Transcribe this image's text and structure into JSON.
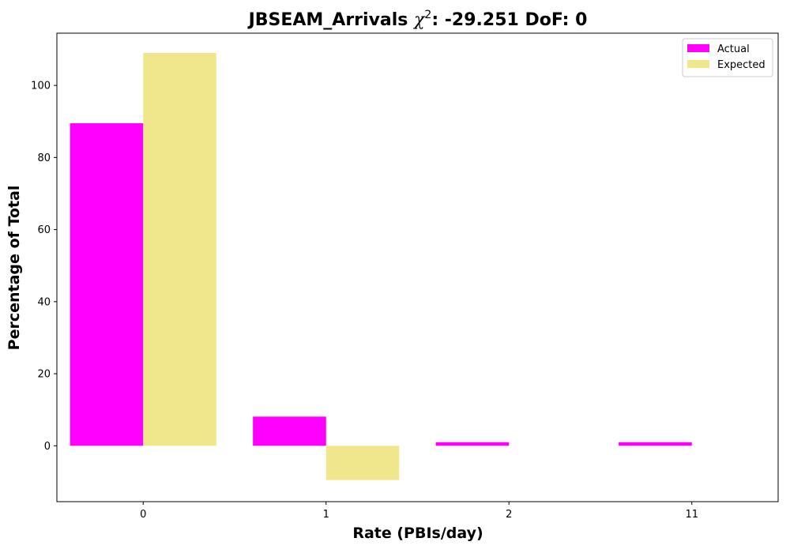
{
  "chart_data": {
    "type": "bar",
    "title_main": "JBSEAM_Arrivals ",
    "title_chi": "χ",
    "title_sup": "2",
    "title_rest": ": -29.251 DoF: 0",
    "xlabel": "Rate (PBIs/day)",
    "ylabel": "Percentage of Total",
    "categories": [
      "0",
      "1",
      "2",
      "11"
    ],
    "series": [
      {
        "name": "Actual",
        "color": "#ff00ff",
        "values": [
          89.5,
          8.1,
          1.0,
          1.0
        ]
      },
      {
        "name": "Expected",
        "color": "#f0e68c",
        "values": [
          109.0,
          -9.5,
          0,
          0
        ]
      }
    ],
    "ylim": [
      -15.5,
      114.5
    ],
    "yticks": [
      0,
      20,
      40,
      60,
      80,
      100
    ],
    "grid": false,
    "legend_position": "top-right"
  }
}
